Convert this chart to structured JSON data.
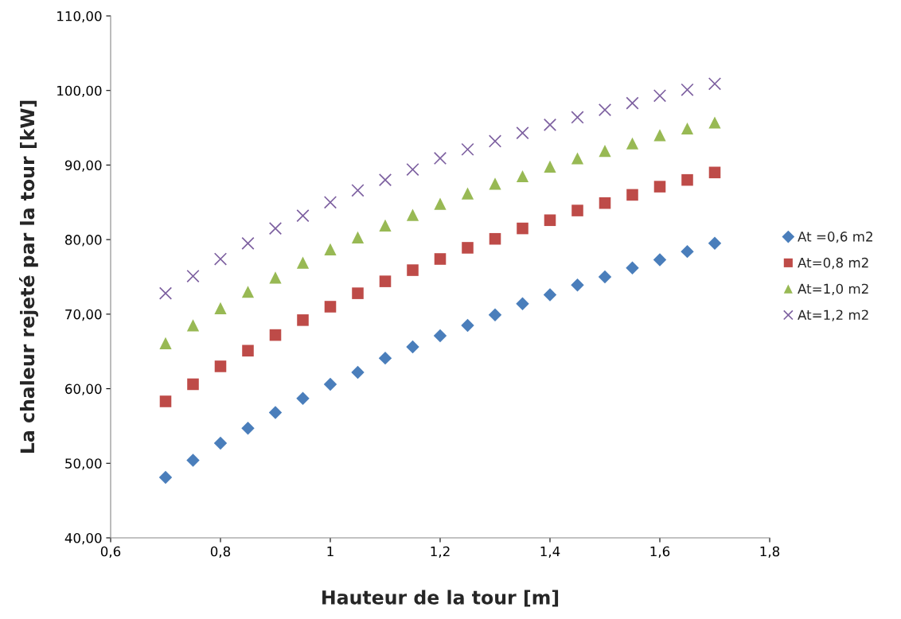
{
  "chart_data": {
    "type": "scatter",
    "xlabel": "Hauteur de la tour [m]",
    "ylabel": "La chaleur rejeté par la tour [kW]",
    "x": [
      0.7,
      0.75,
      0.8,
      0.85,
      0.9,
      0.95,
      1.0,
      1.05,
      1.1,
      1.15,
      1.2,
      1.25,
      1.3,
      1.35,
      1.4,
      1.45,
      1.5,
      1.55,
      1.6,
      1.65,
      1.7
    ],
    "series": [
      {
        "name": "At =0,6 m2",
        "color": "#4a7ebb",
        "marker": "diamond",
        "values": [
          48.1,
          50.4,
          52.7,
          54.7,
          56.8,
          58.7,
          60.6,
          62.2,
          64.1,
          65.6,
          67.1,
          68.5,
          69.9,
          71.4,
          72.6,
          73.9,
          75.0,
          76.2,
          77.3,
          78.4,
          79.5
        ]
      },
      {
        "name": "At=0,8 m2",
        "color": "#be4b48",
        "marker": "square",
        "values": [
          58.3,
          60.6,
          63.0,
          65.1,
          67.2,
          69.2,
          71.0,
          72.8,
          74.4,
          75.9,
          77.4,
          78.9,
          80.1,
          81.5,
          82.6,
          83.9,
          84.9,
          86.0,
          87.1,
          88.0,
          89.0
        ]
      },
      {
        "name": "At=1,0 m2",
        "color": "#98b954",
        "marker": "triangle",
        "values": [
          66.1,
          68.5,
          70.8,
          73.0,
          74.9,
          76.9,
          78.7,
          80.3,
          81.9,
          83.3,
          84.8,
          86.2,
          87.5,
          88.5,
          89.8,
          90.9,
          91.9,
          92.9,
          94.0,
          94.9,
          95.7
        ]
      },
      {
        "name": "At=1,2 m2",
        "color": "#7d60a0",
        "marker": "cross",
        "values": [
          72.8,
          75.1,
          77.4,
          79.5,
          81.5,
          83.2,
          85.0,
          86.6,
          88.0,
          89.4,
          90.9,
          92.1,
          93.2,
          94.3,
          95.4,
          96.4,
          97.4,
          98.3,
          99.3,
          100.1,
          100.9
        ]
      }
    ],
    "xlim": [
      0.6,
      1.8
    ],
    "xticks": [
      {
        "value": 0.6,
        "label": "0,6"
      },
      {
        "value": 0.8,
        "label": "0,8"
      },
      1,
      {
        "value": 1.2,
        "label": "1,2"
      },
      {
        "value": 1.4,
        "label": "1,4"
      },
      {
        "value": 1.6,
        "label": "1,6"
      },
      {
        "value": 1.8,
        "label": "1,8"
      }
    ],
    "ylim": [
      40,
      110
    ],
    "yticks": [
      {
        "value": 40,
        "label": "40,00"
      },
      {
        "value": 50,
        "label": "50,00"
      },
      {
        "value": 60,
        "label": "60,00"
      },
      {
        "value": 70,
        "label": "70,00"
      },
      {
        "value": 80,
        "label": "80,00"
      },
      {
        "value": 90,
        "label": "90,00"
      },
      {
        "value": 100,
        "label": "100,00"
      },
      {
        "value": 110,
        "label": "110,00"
      }
    ],
    "grid": false,
    "legend": "right"
  }
}
